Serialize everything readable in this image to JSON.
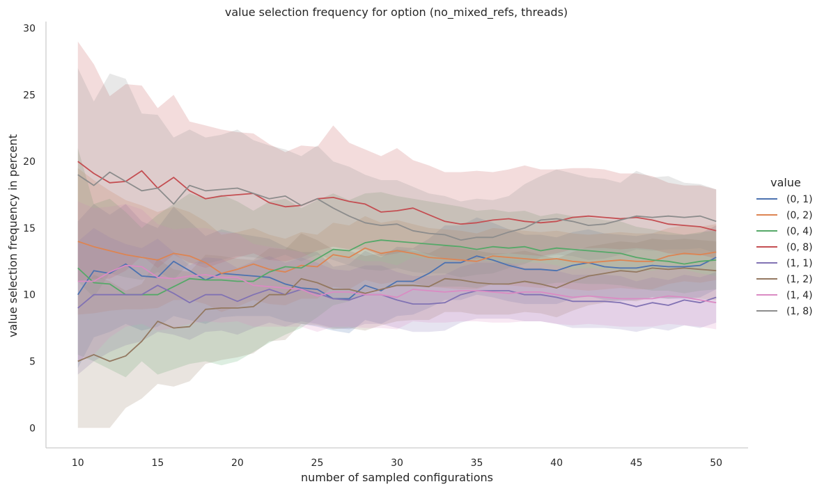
{
  "chart_data": {
    "type": "line",
    "title": "value selection frequency for option (no_mixed_refs, threads)",
    "xlabel": "number of sampled configurations",
    "ylabel": "value selection frequency in percent",
    "xlim": [
      8,
      52
    ],
    "ylim": [
      -1.5,
      30.5
    ],
    "xticks": [
      10,
      15,
      20,
      25,
      30,
      35,
      40,
      45,
      50
    ],
    "yticks": [
      0,
      5,
      10,
      15,
      20,
      25,
      30
    ],
    "grid": false,
    "legend": {
      "title": "value",
      "placement": "right"
    },
    "x": [
      10,
      11,
      12,
      13,
      14,
      15,
      16,
      17,
      18,
      19,
      20,
      21,
      22,
      23,
      24,
      25,
      26,
      27,
      28,
      29,
      30,
      31,
      32,
      33,
      34,
      35,
      36,
      37,
      38,
      39,
      40,
      41,
      42,
      43,
      44,
      45,
      46,
      47,
      48,
      49,
      50
    ],
    "series": [
      {
        "name": "(0, 1)",
        "color": "#4c72b0",
        "values": [
          10,
          11.8,
          11.6,
          12.3,
          11.4,
          11.3,
          12.5,
          11.8,
          11.1,
          11.6,
          11.5,
          11.4,
          11.3,
          10.8,
          10.5,
          10.4,
          9.7,
          9.7,
          10.7,
          10.3,
          11,
          11,
          11.6,
          12.4,
          12.4,
          12.9,
          12.6,
          12.2,
          11.9,
          11.9,
          11.8,
          12.2,
          12.4,
          12.1,
          12,
          12,
          12.2,
          12.1,
          12.1,
          12.2,
          12.8
        ],
        "lower": [
          4.5,
          6.8,
          7.2,
          7.8,
          7.3,
          7.6,
          8.4,
          8.1,
          7.8,
          8.3,
          8.4,
          8.4,
          8.4,
          8,
          7.8,
          7.6,
          7.3,
          7.1,
          8.1,
          7.8,
          8.4,
          8.5,
          9,
          9.6,
          9.6,
          10,
          9.8,
          9.5,
          9.3,
          9.3,
          9.3,
          9.7,
          9.9,
          9.6,
          9.5,
          9.6,
          9.8,
          9.7,
          9.7,
          9.8,
          10.4
        ],
        "upper": [
          15.5,
          16.8,
          16,
          16.8,
          15.5,
          15,
          16.6,
          15.5,
          14.4,
          14.9,
          14.6,
          14.4,
          14.2,
          13.6,
          13.2,
          13.2,
          12.1,
          12.3,
          13.3,
          12.8,
          13.6,
          13.5,
          14.2,
          15.2,
          15.2,
          15.8,
          15.4,
          14.9,
          14.5,
          14.5,
          14.3,
          14.7,
          14.9,
          14.6,
          14.5,
          14.4,
          14.6,
          14.5,
          14.5,
          14.6,
          15.2
        ]
      },
      {
        "name": "(0, 2)",
        "color": "#dd8452",
        "values": [
          14,
          13.6,
          13.3,
          13,
          12.8,
          12.6,
          13.1,
          12.9,
          12.4,
          11.6,
          11.9,
          12.3,
          11.9,
          11.7,
          12.2,
          12.1,
          13,
          12.8,
          13.5,
          13.1,
          13.3,
          13.1,
          12.8,
          12.7,
          12.6,
          12.5,
          12.9,
          12.8,
          12.7,
          12.6,
          12.7,
          12.5,
          12.4,
          12.5,
          12.6,
          12.5,
          12.5,
          12.9,
          13.1,
          13,
          13.2
        ],
        "lower": [
          8.5,
          8.6,
          8.8,
          8.9,
          8.9,
          9,
          9.6,
          9.6,
          9.3,
          8.7,
          9.1,
          9.6,
          9.3,
          9.2,
          9.7,
          9.7,
          10.6,
          10.4,
          11.1,
          10.8,
          11,
          10.9,
          10.6,
          10.5,
          10.4,
          10.4,
          10.8,
          10.7,
          10.6,
          10.5,
          10.6,
          10.4,
          10.3,
          10.4,
          10.5,
          10.4,
          10.4,
          10.8,
          11,
          10.9,
          11.1
        ],
        "upper": [
          19.5,
          18.6,
          17.8,
          17.1,
          16.7,
          16.2,
          16.6,
          16.2,
          15.5,
          14.5,
          14.7,
          15,
          14.5,
          14.2,
          14.7,
          14.5,
          15.4,
          15.2,
          15.9,
          15.4,
          15.6,
          15.3,
          15,
          14.9,
          14.8,
          14.6,
          15,
          14.9,
          14.8,
          14.7,
          14.8,
          14.6,
          14.5,
          14.6,
          14.7,
          14.6,
          14.6,
          15,
          15.2,
          15.1,
          15.3
        ]
      },
      {
        "name": "(0, 4)",
        "color": "#55a868",
        "values": [
          12,
          10.9,
          10.8,
          10,
          10,
          10,
          10.6,
          11.2,
          11.1,
          11.1,
          11,
          11,
          11.7,
          12.1,
          12,
          12.7,
          13.4,
          13.3,
          13.9,
          14.1,
          14,
          13.9,
          13.8,
          13.7,
          13.6,
          13.4,
          13.6,
          13.5,
          13.6,
          13.3,
          13.5,
          13.4,
          13.3,
          13.2,
          13.1,
          12.8,
          12.6,
          12.5,
          12.3,
          12.5,
          12.6
        ],
        "lower": [
          5.5,
          5,
          4.4,
          3.8,
          5,
          4,
          4.4,
          4.8,
          5,
          4.7,
          5,
          5.7,
          6.4,
          7,
          7.5,
          8.3,
          9.2,
          9.5,
          10.2,
          10.5,
          10.6,
          10.6,
          10.6,
          10.6,
          10.6,
          10.5,
          10.8,
          10.8,
          10.9,
          10.7,
          10.9,
          10.9,
          10.8,
          10.8,
          10.7,
          10.5,
          10.3,
          10.3,
          10.1,
          10.3,
          10.4
        ],
        "upper": [
          21,
          16.8,
          17.2,
          16.2,
          15,
          16,
          16.8,
          17.6,
          17.2,
          17.5,
          17,
          16.3,
          17,
          17.2,
          16.5,
          17.1,
          17.6,
          17.1,
          17.6,
          17.7,
          17.4,
          17.2,
          17,
          16.8,
          16.6,
          16.3,
          16.4,
          16.2,
          16.3,
          15.9,
          16.1,
          15.9,
          15.8,
          15.6,
          15.5,
          15.1,
          14.9,
          14.7,
          14.5,
          14.7,
          14.8
        ]
      },
      {
        "name": "(0, 8)",
        "color": "#c44e52",
        "values": [
          20,
          19.1,
          18.4,
          18.5,
          19.3,
          18,
          18.8,
          17.8,
          17.2,
          17.4,
          17.5,
          17.6,
          16.9,
          16.6,
          16.7,
          17.2,
          17.3,
          17,
          16.8,
          16.2,
          16.3,
          16.5,
          16,
          15.5,
          15.3,
          15.4,
          15.6,
          15.7,
          15.5,
          15.4,
          15.5,
          15.8,
          15.9,
          15.8,
          15.7,
          15.8,
          15.6,
          15.3,
          15.2,
          15.1,
          14.8
        ],
        "lower": [
          11,
          11.2,
          11.2,
          11.8,
          12.9,
          12,
          13,
          12.4,
          12,
          12.4,
          12.8,
          13.1,
          12.6,
          12.5,
          12.8,
          13.3,
          13.6,
          13.4,
          13.4,
          12.9,
          13.1,
          13.4,
          13,
          12.7,
          12.6,
          12.7,
          13,
          13.1,
          13,
          12.9,
          13.1,
          13.4,
          13.5,
          13.5,
          13.4,
          13.5,
          13.4,
          13.1,
          13,
          13,
          12.7
        ],
        "upper": [
          29,
          27.3,
          24.9,
          25.8,
          25.7,
          24,
          25,
          23,
          22.7,
          22.4,
          22.2,
          22.1,
          21.3,
          20.7,
          21.2,
          21.1,
          22.7,
          21.4,
          20.9,
          20.4,
          21,
          20.1,
          19.7,
          19.2,
          19.2,
          19.3,
          19.2,
          19.4,
          19.7,
          19.4,
          19.4,
          19.5,
          19.5,
          19.4,
          19.1,
          19.1,
          18.9,
          18.4,
          18.2,
          18.2,
          17.9
        ]
      },
      {
        "name": "(1, 1)",
        "color": "#8172b3",
        "values": [
          9,
          10,
          10,
          10,
          10,
          10.7,
          10.1,
          9.4,
          10,
          10,
          9.5,
          10,
          10.4,
          10,
          10.4,
          10.1,
          9.7,
          9.6,
          10,
          10,
          9.6,
          9.3,
          9.3,
          9.4,
          10,
          10.3,
          10.3,
          10.3,
          10,
          10,
          9.8,
          9.5,
          9.5,
          9.5,
          9.4,
          9.1,
          9.4,
          9.2,
          9.6,
          9.4,
          9.8
        ],
        "lower": [
          4,
          5,
          5.7,
          6.2,
          6.5,
          7.2,
          7,
          6.6,
          7.2,
          7.3,
          7,
          7.5,
          7.9,
          7.6,
          8,
          7.8,
          7.5,
          7.4,
          7.8,
          7.8,
          7.5,
          7.2,
          7.2,
          7.3,
          7.9,
          8.2,
          8.2,
          8.2,
          8,
          8,
          7.8,
          7.5,
          7.5,
          7.5,
          7.4,
          7.2,
          7.5,
          7.3,
          7.7,
          7.5,
          7.9
        ],
        "upper": [
          14,
          15,
          14.3,
          13.8,
          13.5,
          14.2,
          13.2,
          12.2,
          12.8,
          12.7,
          12,
          12.5,
          12.9,
          12.4,
          12.8,
          12.4,
          11.9,
          11.8,
          12.2,
          12.2,
          11.7,
          11.4,
          11.4,
          11.5,
          12.1,
          12.4,
          12.4,
          12.4,
          12,
          12,
          11.8,
          11.5,
          11.5,
          11.5,
          11.4,
          11,
          11.3,
          11.1,
          11.5,
          11.3,
          11.7
        ]
      },
      {
        "name": "(1, 2)",
        "color": "#937860",
        "values": [
          5,
          5.5,
          5,
          5.4,
          6.5,
          8,
          7.5,
          7.6,
          8.9,
          9,
          9,
          9.1,
          10,
          10,
          11.2,
          10.9,
          10.4,
          10.4,
          10.1,
          10.4,
          10.7,
          10.7,
          10.6,
          11.2,
          11.1,
          10.9,
          10.8,
          10.8,
          11,
          10.8,
          10.5,
          11,
          11.4,
          11.6,
          11.8,
          11.7,
          12,
          11.9,
          12,
          11.9,
          11.8
        ],
        "lower": [
          0,
          0,
          0,
          1.5,
          2.2,
          3.3,
          3.1,
          3.5,
          4.8,
          5.1,
          5.3,
          5.6,
          6.5,
          6.6,
          7.8,
          7.7,
          7.4,
          7.5,
          7.3,
          7.7,
          8,
          8.1,
          8.1,
          8.7,
          8.7,
          8.5,
          8.5,
          8.5,
          8.7,
          8.6,
          8.3,
          8.8,
          9.2,
          9.4,
          9.6,
          9.5,
          9.8,
          9.7,
          9.8,
          9.7,
          9.6
        ],
        "upper": [
          10,
          11.5,
          11,
          10.3,
          10.8,
          12.7,
          11.9,
          11.7,
          13,
          12.9,
          12.7,
          12.6,
          13.5,
          13.4,
          14.6,
          14.1,
          13.4,
          13.3,
          12.9,
          13.1,
          13.4,
          13.3,
          13.1,
          13.7,
          13.5,
          13.3,
          13.1,
          13.1,
          13.3,
          13,
          12.7,
          13.2,
          13.6,
          13.8,
          14,
          13.9,
          14.2,
          14.1,
          14.2,
          14.1,
          14
        ]
      },
      {
        "name": "(1, 4)",
        "color": "#da8bc3",
        "values": [
          11,
          11,
          11.7,
          12.2,
          12.1,
          11.3,
          11.2,
          11.4,
          11.5,
          11.3,
          11.3,
          10.7,
          10.6,
          10.5,
          10.4,
          9.9,
          10.2,
          10.2,
          10,
          10,
          9.8,
          10.4,
          10.3,
          10.2,
          10.3,
          10.3,
          10.2,
          10.1,
          10.2,
          10.2,
          10,
          9.8,
          9.9,
          9.8,
          9.7,
          9.7,
          9.7,
          9.9,
          9.8,
          9.6,
          9.4
        ],
        "lower": [
          5,
          5.5,
          6.8,
          7.6,
          7.8,
          7.3,
          7.5,
          7.8,
          8,
          7.9,
          8,
          7.6,
          7.6,
          7.6,
          7.6,
          7.2,
          7.6,
          7.6,
          7.5,
          7.5,
          7.4,
          8,
          7.9,
          7.9,
          8,
          8,
          7.9,
          7.9,
          8,
          8,
          7.8,
          7.7,
          7.8,
          7.7,
          7.6,
          7.6,
          7.6,
          7.8,
          7.7,
          7.6,
          7.4
        ],
        "upper": [
          17,
          16.5,
          16.6,
          16.8,
          16.4,
          15.3,
          14.9,
          15,
          15,
          14.7,
          14.6,
          13.8,
          13.6,
          13.4,
          13.2,
          12.6,
          12.8,
          12.8,
          12.5,
          12.5,
          12.2,
          12.8,
          12.7,
          12.5,
          12.6,
          12.6,
          12.5,
          12.3,
          12.4,
          12.4,
          12.2,
          11.9,
          12,
          11.9,
          11.8,
          11.8,
          11.8,
          12,
          11.9,
          11.6,
          11.4
        ]
      },
      {
        "name": "(1, 8)",
        "color": "#8c8c8c",
        "values": [
          19,
          18.2,
          19.2,
          18.5,
          17.8,
          18,
          16.8,
          18.2,
          17.8,
          17.9,
          18,
          17.6,
          17.2,
          17.4,
          16.7,
          17.2,
          16.5,
          15.9,
          15.4,
          15.2,
          15.3,
          14.8,
          14.6,
          14.5,
          14.1,
          14.3,
          14.3,
          14.7,
          15,
          15.6,
          15.7,
          15.5,
          15.2,
          15.3,
          15.6,
          15.9,
          15.8,
          15.9,
          15.8,
          15.9,
          15.5
        ],
        "lower": [
          11,
          9.8,
          11.6,
          11.3,
          11.1,
          11.7,
          11.1,
          12.4,
          12.3,
          12.6,
          12.9,
          12.8,
          12.6,
          13,
          12.5,
          13,
          12.6,
          12.2,
          11.9,
          11.8,
          12,
          11.7,
          11.6,
          11.6,
          11.3,
          11.5,
          11.6,
          12,
          12.3,
          12.8,
          13,
          12.9,
          12.6,
          12.7,
          13,
          13.4,
          13.3,
          13.4,
          13.4,
          13.5,
          13.1
        ],
        "upper": [
          27,
          24.5,
          26.6,
          26.2,
          23.6,
          23.5,
          21.8,
          22.4,
          21.8,
          22,
          22.4,
          21.6,
          21.2,
          20.9,
          20.4,
          21.2,
          20,
          19.6,
          19,
          18.6,
          18.6,
          18.1,
          17.6,
          17.4,
          17,
          17.2,
          17.1,
          17.4,
          18.3,
          18.9,
          19.4,
          19.1,
          18.8,
          18.7,
          18.4,
          19.3,
          18.8,
          18.9,
          18.4,
          18.3,
          17.9
        ]
      }
    ]
  }
}
